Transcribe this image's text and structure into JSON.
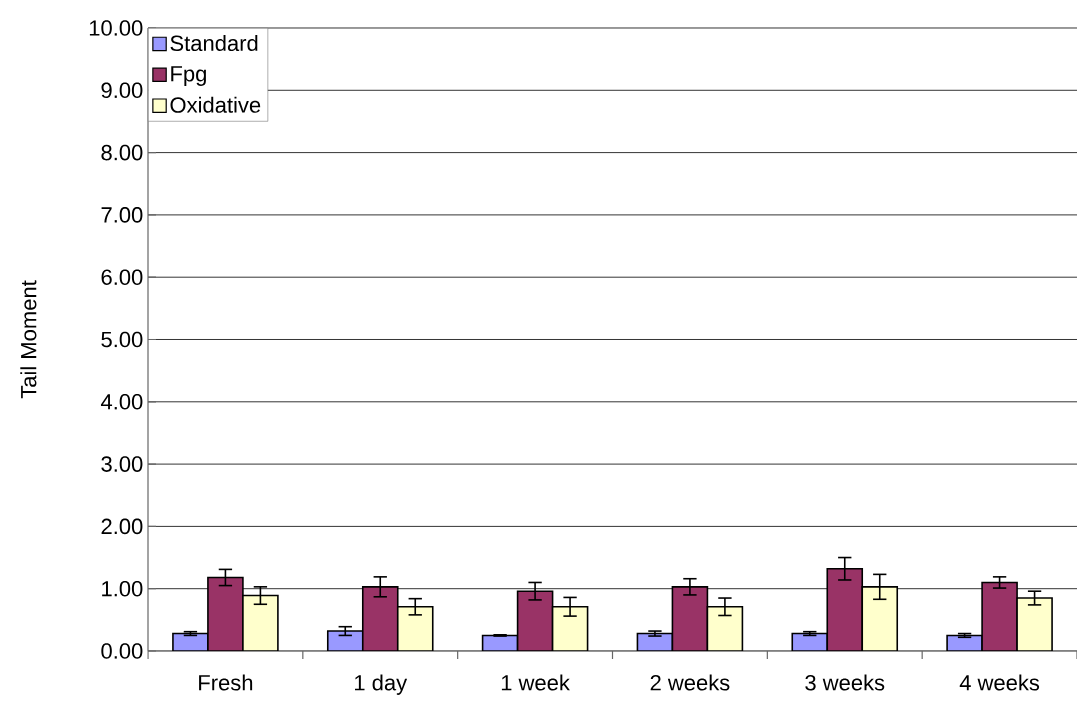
{
  "chart_data": {
    "type": "bar",
    "ylabel": "Tail Moment",
    "categories": [
      "Fresh",
      "1 day",
      "1 week",
      "2 weeks",
      "3 weeks",
      "4 weeks"
    ],
    "series": [
      {
        "name": "Standard",
        "color": "#9999ff",
        "values": [
          0.28,
          0.32,
          0.25,
          0.28,
          0.28,
          0.25
        ],
        "errors": [
          0.03,
          0.07,
          0.01,
          0.04,
          0.03,
          0.03
        ]
      },
      {
        "name": "Fpg",
        "color": "#993366",
        "values": [
          1.18,
          1.03,
          0.96,
          1.03,
          1.32,
          1.1
        ],
        "errors": [
          0.13,
          0.16,
          0.14,
          0.13,
          0.18,
          0.09
        ]
      },
      {
        "name": "Oxidative",
        "color": "#ffffcc",
        "values": [
          0.89,
          0.71,
          0.71,
          0.71,
          1.03,
          0.85
        ],
        "errors": [
          0.14,
          0.13,
          0.15,
          0.14,
          0.2,
          0.11
        ]
      }
    ],
    "ylim": [
      0,
      10
    ],
    "yticks": [
      {
        "value": 0,
        "label": "0.00"
      },
      {
        "value": 1,
        "label": "1.00"
      },
      {
        "value": 2,
        "label": "2.00"
      },
      {
        "value": 3,
        "label": "3.00"
      },
      {
        "value": 4,
        "label": "4.00"
      },
      {
        "value": 5,
        "label": "5.00"
      },
      {
        "value": 6,
        "label": "6.00"
      },
      {
        "value": 7,
        "label": "7.00"
      },
      {
        "value": 8,
        "label": "8.00"
      },
      {
        "value": 9,
        "label": "9.00"
      },
      {
        "value": 10,
        "label": "10.00"
      }
    ],
    "grid": "y",
    "legend": "top left"
  }
}
